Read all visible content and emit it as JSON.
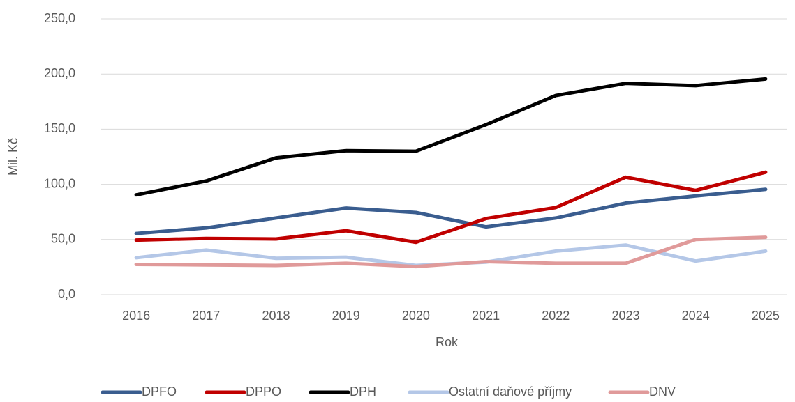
{
  "chart_data": {
    "type": "line",
    "x_label": "Rok",
    "y_label": "Mil. Kč",
    "categories": [
      "2016",
      "2017",
      "2018",
      "2019",
      "2020",
      "2021",
      "2022",
      "2023",
      "2024",
      "2025"
    ],
    "series": [
      {
        "name": "DPFO",
        "color": "#3a5d8f",
        "values": [
          55.5,
          60.5,
          69.5,
          78.5,
          74.5,
          61.5,
          69.5,
          83,
          89.5,
          95.5
        ]
      },
      {
        "name": "DPPO",
        "color": "#c00000",
        "values": [
          49.5,
          51,
          50.5,
          58,
          47.5,
          69,
          79,
          106.5,
          94.5,
          111
        ]
      },
      {
        "name": "DPH",
        "color": "#000000",
        "values": [
          90.5,
          103,
          124,
          130.5,
          130,
          154,
          180.5,
          191.5,
          189.5,
          195.5
        ]
      },
      {
        "name": "Ostatní daňové příjmy",
        "color": "#b4c7e7",
        "values": [
          33.5,
          40.5,
          33,
          34,
          26.5,
          29.5,
          39.5,
          45,
          30.5,
          39.5
        ]
      },
      {
        "name": "DNV",
        "color": "#e09a9a",
        "values": [
          27.5,
          27,
          26.5,
          28.5,
          25.5,
          30,
          28.5,
          28.5,
          50,
          52
        ]
      }
    ],
    "ylim": [
      0,
      250
    ],
    "yticks": [
      {
        "value": 0,
        "label": "0,0"
      },
      {
        "value": 50,
        "label": "50,0"
      },
      {
        "value": 100,
        "label": "100,0"
      },
      {
        "value": 150,
        "label": "150,0"
      },
      {
        "value": 200,
        "label": "200,0"
      },
      {
        "value": 250,
        "label": "250,0"
      }
    ],
    "grid": true,
    "legend": "bottom"
  }
}
